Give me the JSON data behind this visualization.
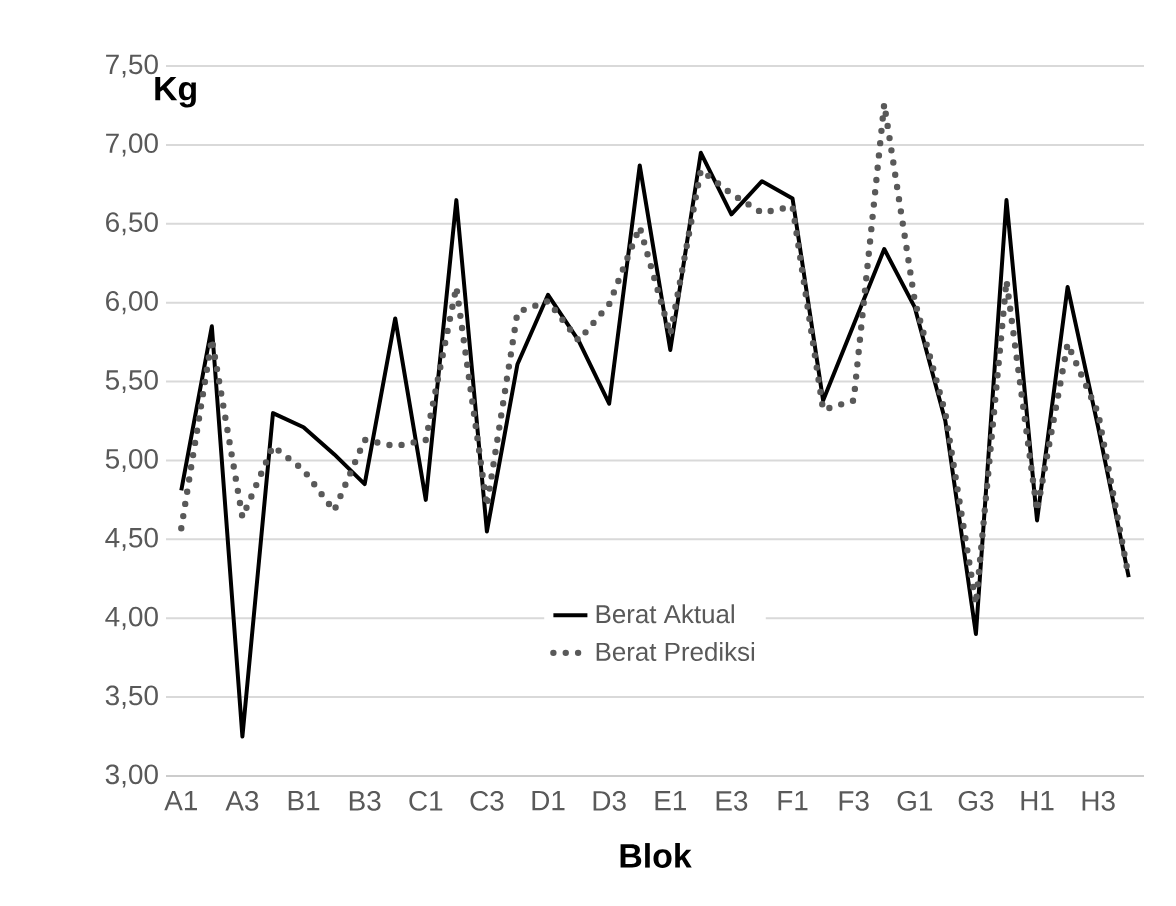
{
  "chart_data": {
    "type": "line",
    "ylabel": "Kg",
    "xlabel": "Blok",
    "categories": [
      "A1",
      null,
      "A3",
      null,
      "B1",
      null,
      "B3",
      null,
      "C1",
      null,
      "C3",
      null,
      "D1",
      null,
      "D3",
      null,
      "E1",
      null,
      "E3",
      null,
      "F1",
      null,
      "F3",
      null,
      "G1",
      null,
      "G3",
      null,
      "H1",
      null,
      "H3",
      null
    ],
    "series": [
      {
        "name": "Berat Aktual",
        "color": "#000000",
        "line_style": "solid",
        "values": [
          4.81,
          5.85,
          3.25,
          5.3,
          5.21,
          5.04,
          4.85,
          5.9,
          4.75,
          6.65,
          4.55,
          5.61,
          6.05,
          5.76,
          5.36,
          6.87,
          5.7,
          6.95,
          6.56,
          6.77,
          6.66,
          5.38,
          5.86,
          6.34,
          5.97,
          5.25,
          3.9,
          6.65,
          4.62,
          6.1,
          5.21,
          4.26
        ]
      },
      {
        "name": "Berat Prediksi",
        "color": "#595959",
        "line_style": "dotted",
        "values": [
          4.57,
          5.77,
          4.64,
          5.09,
          4.94,
          4.68,
          5.13,
          5.09,
          5.13,
          6.1,
          4.71,
          5.94,
          6.01,
          5.76,
          5.99,
          6.48,
          5.8,
          6.84,
          6.69,
          6.57,
          6.61,
          5.32,
          5.38,
          7.26,
          6.01,
          5.3,
          4.09,
          6.14,
          4.68,
          5.74,
          5.3,
          4.26
        ]
      }
    ],
    "ylim": [
      3,
      7.5
    ],
    "yticks": [
      {
        "value": 3,
        "label": "3,00"
      },
      {
        "value": 3.5,
        "label": "3,50"
      },
      {
        "value": 4,
        "label": "4,00"
      },
      {
        "value": 4.5,
        "label": "4,50"
      },
      {
        "value": 5,
        "label": "5,00"
      },
      {
        "value": 5.5,
        "label": "5,50"
      },
      {
        "value": 6,
        "label": "6,00"
      },
      {
        "value": 6.5,
        "label": "6,50"
      },
      {
        "value": 7,
        "label": "7,00"
      },
      {
        "value": 7.5,
        "label": "7,50"
      }
    ],
    "grid": "y",
    "legend": "bottom",
    "marker": "none"
  }
}
